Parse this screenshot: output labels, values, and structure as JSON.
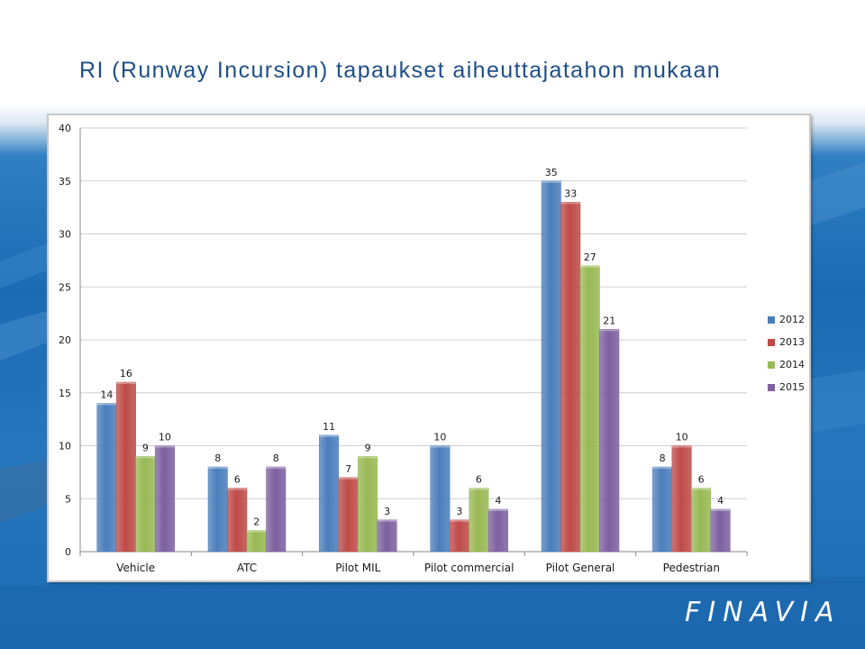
{
  "slide": {
    "title": "RI (Runway Incursion) tapaukset aiheuttajatahon mukaan",
    "logo": "FINAVIA"
  },
  "chart_data": {
    "type": "bar",
    "categories": [
      "Vehicle",
      "ATC",
      "Pilot MIL",
      "Pilot commercial",
      "Pilot General",
      "Pedestrian"
    ],
    "series": [
      {
        "name": "2012",
        "color": "#4a7ebb",
        "values": [
          14,
          8,
          11,
          10,
          35,
          8
        ]
      },
      {
        "name": "2013",
        "color": "#be4b48",
        "values": [
          16,
          6,
          7,
          3,
          33,
          10
        ]
      },
      {
        "name": "2014",
        "color": "#98b954",
        "values": [
          9,
          2,
          9,
          6,
          27,
          6
        ]
      },
      {
        "name": "2015",
        "color": "#7d60a0",
        "values": [
          10,
          8,
          3,
          4,
          21,
          4
        ]
      }
    ],
    "ylim": [
      0,
      40
    ],
    "yticks": [
      0,
      5,
      10,
      15,
      20,
      25,
      30,
      35,
      40
    ],
    "grid": true,
    "legend_position": "right",
    "data_labels": true
  }
}
